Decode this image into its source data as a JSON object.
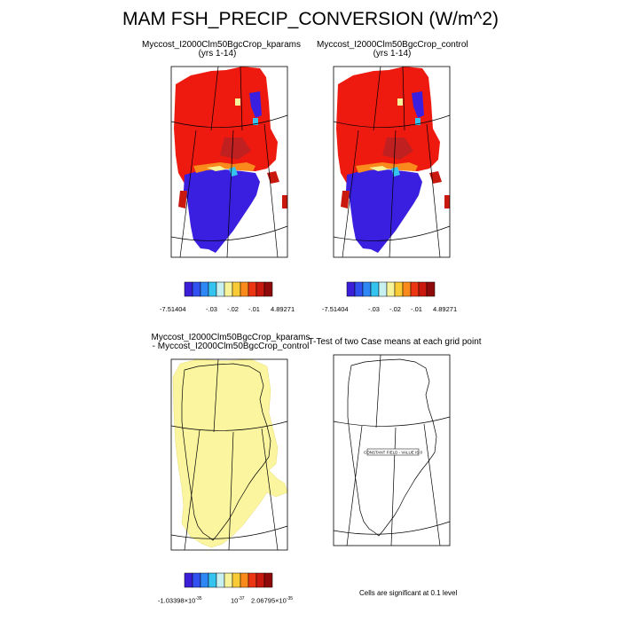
{
  "figure": {
    "title": "MAM FSH_PRECIP_CONVERSION (W/m^2)"
  },
  "panels": [
    {
      "id": "kparams",
      "title": "Myccost_I2000Clm50BgcCrop_kparams",
      "subtitle": "(yrs 1-14)"
    },
    {
      "id": "control",
      "title": "Myccost_I2000Clm50BgcCrop_control",
      "subtitle": "(yrs 1-14)"
    },
    {
      "id": "difference",
      "title_line1": "Myccost_I2000Clm50BgcCrop_kparams",
      "title_line2": "- Myccost_I2000Clm50BgcCrop_control"
    },
    {
      "id": "ttest",
      "title": "T-Test of two Case means at each grid point",
      "inline_label": "CONSTANT FIELD - VALUE IS 0",
      "footnote": "Cells are significant at 0.1 level"
    }
  ],
  "colorbars": {
    "top": {
      "colors": [
        "#3b1fd8",
        "#3050f0",
        "#2f87f5",
        "#35c3f0",
        "#c8f0f0",
        "#f6f39a",
        "#fbcb37",
        "#f98a1b",
        "#ec3513",
        "#c9190f",
        "#8e0a0a"
      ],
      "labels": [
        "-7.51404",
        "-.03",
        "-.02",
        "-.01",
        "4.89271"
      ]
    },
    "bottom": {
      "colors": [
        "#3b1fd8",
        "#3050f0",
        "#2f87f5",
        "#35c3f0",
        "#c8f0f0",
        "#f6f39a",
        "#fbcb37",
        "#f98a1b",
        "#ec3513",
        "#c9190f",
        "#8e0a0a"
      ],
      "label_min_base": "-1.03398×10",
      "label_min_exp": "-35",
      "label_mid_base": "10",
      "label_mid_exp": "-37",
      "label_max_base": "2.06795×10",
      "label_max_exp": "-35"
    }
  },
  "colors": {
    "dominant_north": "#ee1a0f",
    "dominant_south": "#3a1fe0",
    "difference_fill": "#fbf5a0",
    "coastline": "#000000"
  }
}
